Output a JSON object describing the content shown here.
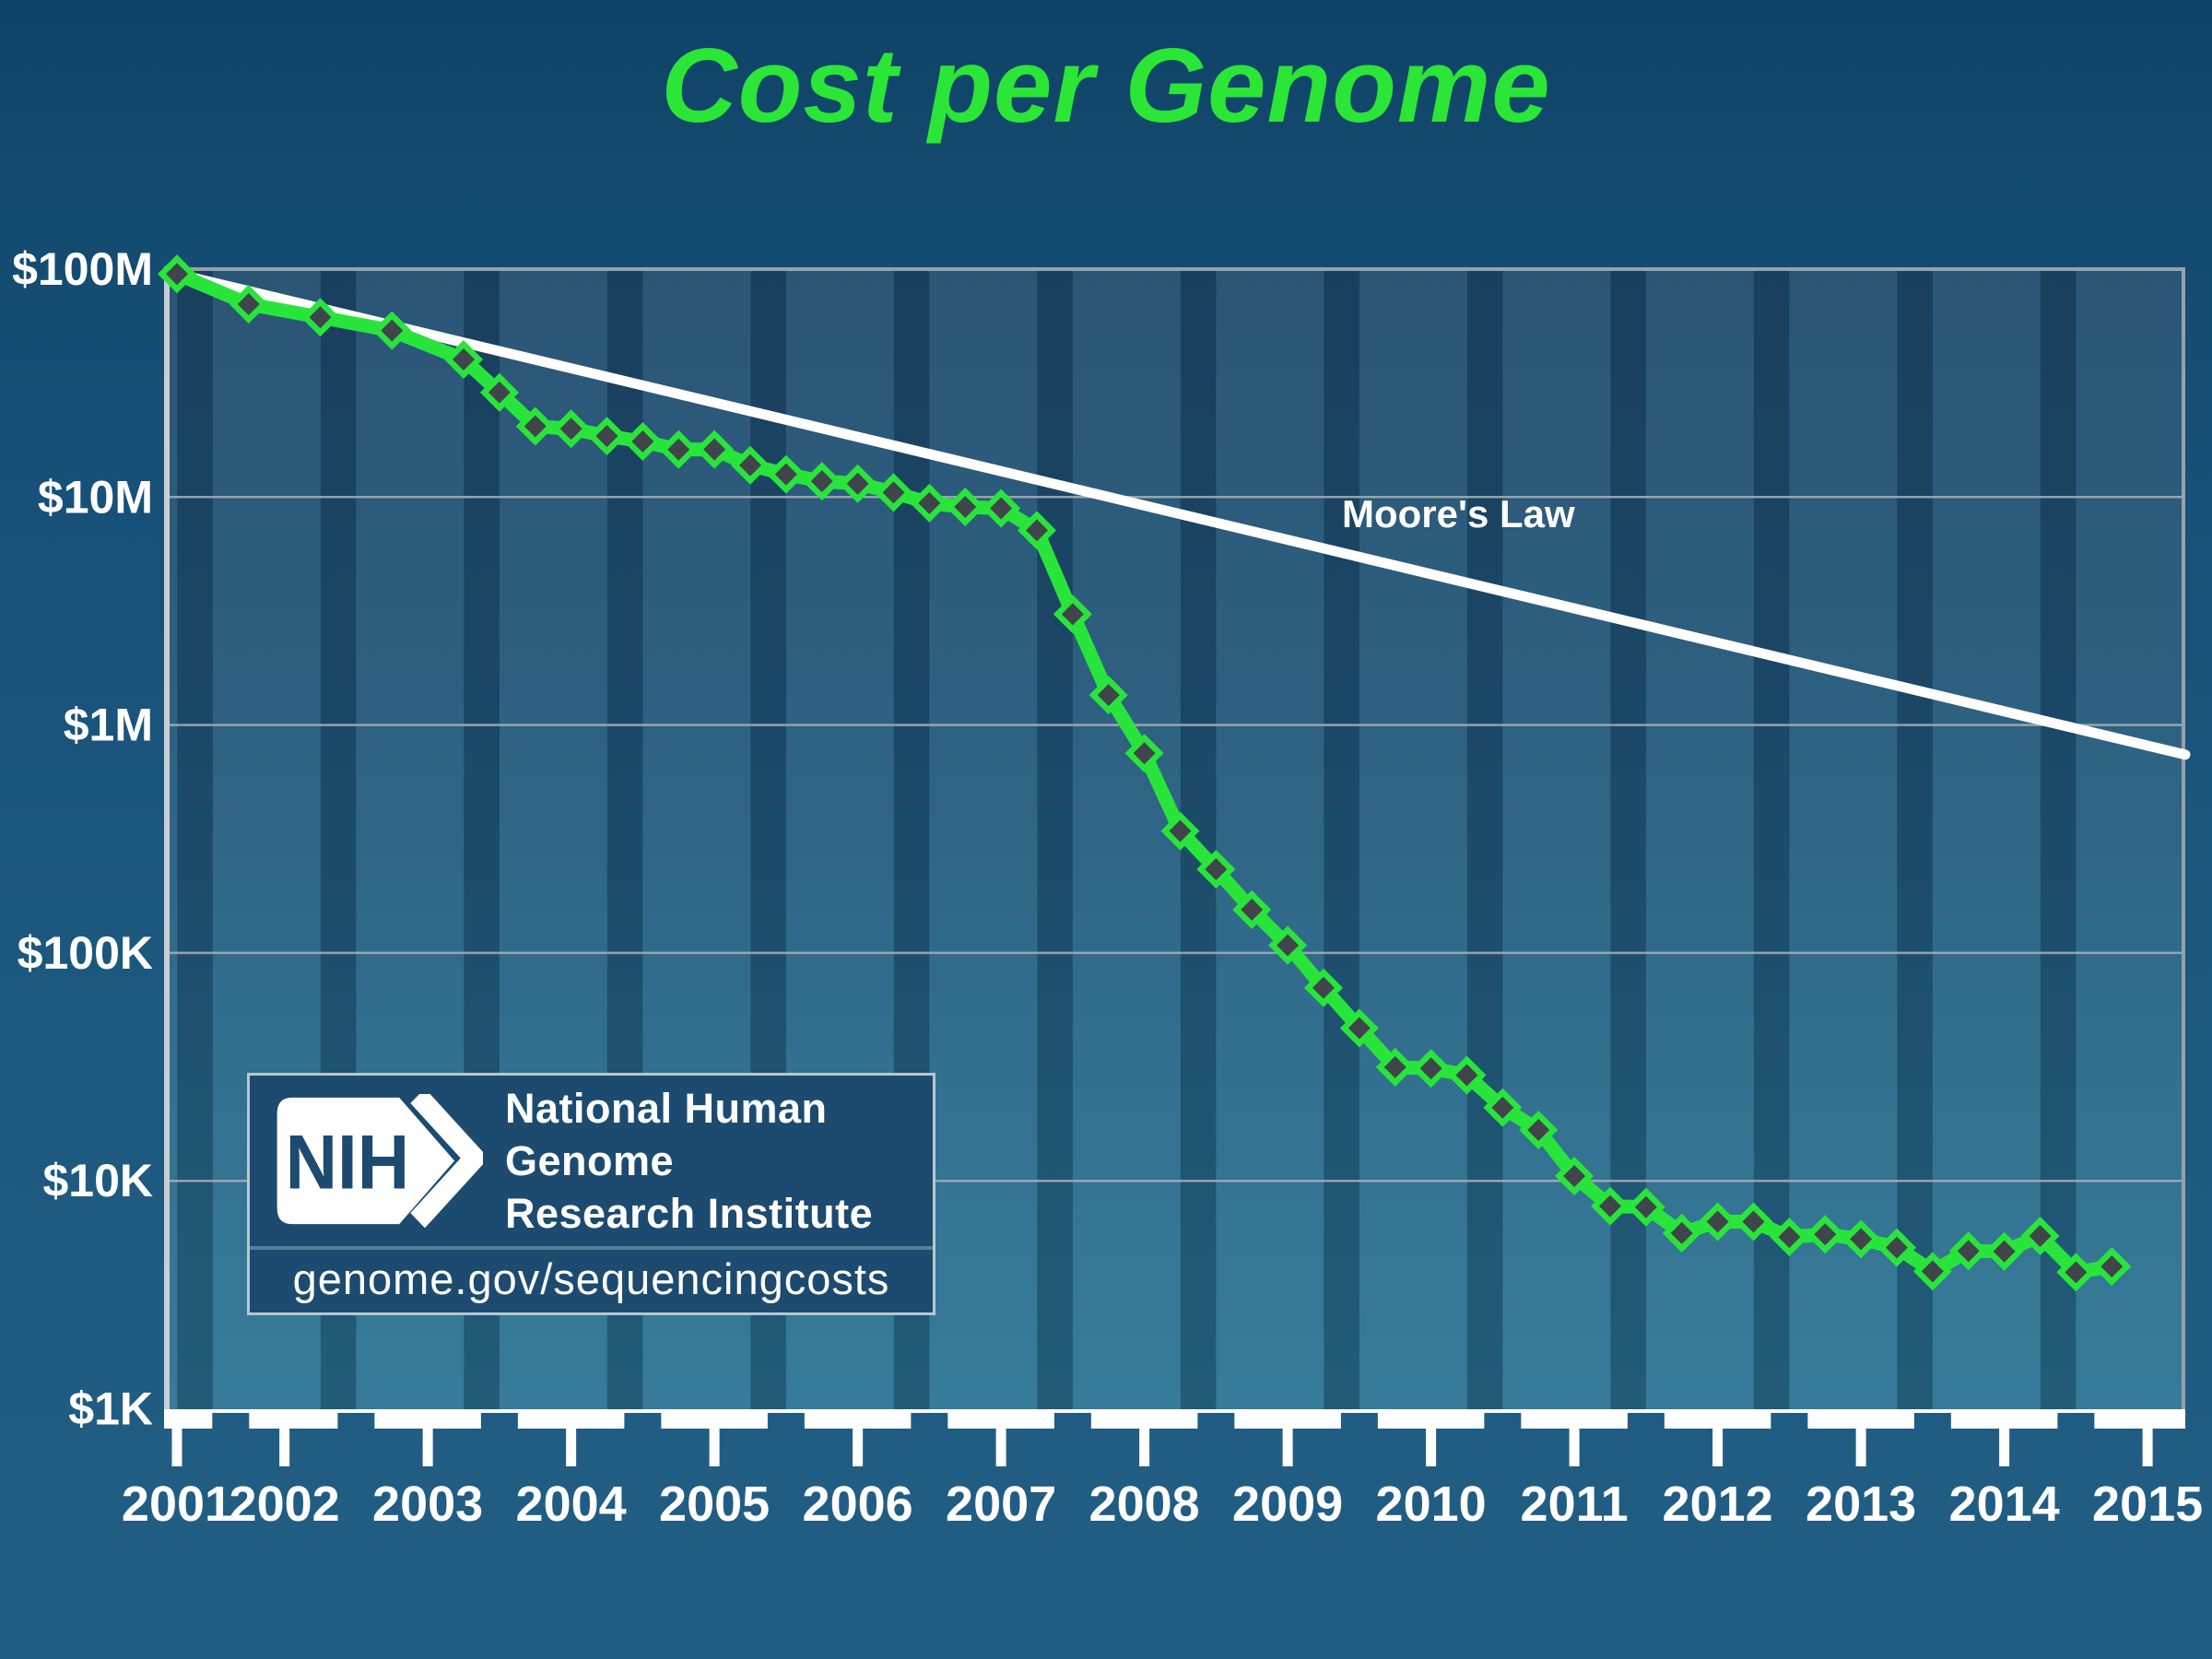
{
  "title": "Cost per Genome",
  "colors": {
    "title_green": "#2BE637",
    "curve_green": "#29E53B",
    "marker_fill": "#3F454A",
    "moore_line": "#FFFFFF",
    "grid_gray": "#A7B2B8",
    "frame_gray": "#97A1A8",
    "axis_white": "#C9CED2",
    "plot_top": "#224E70",
    "plot_bottom": "#2E7696",
    "stripe_dark": "rgba(6,30,52,0.30)",
    "stripe_light": "rgba(255,255,255,0.042)",
    "logo_navy": "#1D4B70",
    "logo_divider": "#4F84A0",
    "label_white": "#FFFFFF"
  },
  "logo": {
    "nih": "NIH",
    "org_line1": "National Human Genome",
    "org_line2": "Research Institute",
    "url": "genome.gov/sequencingcosts"
  },
  "chart_data": {
    "type": "line",
    "title": "Cost per Genome",
    "y_axis": {
      "scale": "log",
      "range": [
        1000,
        100000000
      ],
      "ticks": [
        {
          "label": "$100M",
          "value": 100000000
        },
        {
          "label": "$10M",
          "value": 10000000
        },
        {
          "label": "$1M",
          "value": 1000000
        },
        {
          "label": "$100K",
          "value": 100000
        },
        {
          "label": "$10K",
          "value": 10000
        },
        {
          "label": "$1K",
          "value": 1000
        }
      ]
    },
    "x_axis": {
      "range": [
        2001.68,
        2015.77
      ],
      "ticks": [
        {
          "label": "2001",
          "t": 2001.75
        },
        {
          "label": "2002",
          "t": 2002.5
        },
        {
          "label": "2003",
          "t": 2003.5
        },
        {
          "label": "2004",
          "t": 2004.5
        },
        {
          "label": "2005",
          "t": 2005.5
        },
        {
          "label": "2006",
          "t": 2006.5
        },
        {
          "label": "2007",
          "t": 2007.5
        },
        {
          "label": "2008",
          "t": 2008.5
        },
        {
          "label": "2009",
          "t": 2009.5
        },
        {
          "label": "2010",
          "t": 2010.5
        },
        {
          "label": "2011",
          "t": 2011.5
        },
        {
          "label": "2012",
          "t": 2012.5
        },
        {
          "label": "2013",
          "t": 2013.5
        },
        {
          "label": "2014",
          "t": 2014.5
        },
        {
          "label": "2015",
          "t": 2015.5
        }
      ]
    },
    "moores_law": {
      "label": "Moore's Law",
      "start": {
        "t": 2001.75,
        "cost": 95263072
      },
      "halving_period_years": 2
    },
    "series": [
      {
        "name": "Cost per Genome",
        "points": [
          {
            "date": "Sep-01",
            "t": 2001.75,
            "cost": 95263072
          },
          {
            "date": "Mar-02",
            "t": 2002.25,
            "cost": 70175437
          },
          {
            "date": "Sep-02",
            "t": 2002.75,
            "cost": 61448422
          },
          {
            "date": "Mar-03",
            "t": 2003.25,
            "cost": 53751684
          },
          {
            "date": "Oct-03",
            "t": 2003.75,
            "cost": 40157554
          },
          {
            "date": "Jan-04",
            "t": 2004.0,
            "cost": 28780376
          },
          {
            "date": "Apr-04",
            "t": 2004.25,
            "cost": 20442576
          },
          {
            "date": "Jul-04",
            "t": 2004.5,
            "cost": 19934346
          },
          {
            "date": "Oct-04",
            "t": 2004.75,
            "cost": 18519312
          },
          {
            "date": "Jan-05",
            "t": 2005.0,
            "cost": 17534970
          },
          {
            "date": "Apr-05",
            "t": 2005.25,
            "cost": 16159699
          },
          {
            "date": "Jul-05",
            "t": 2005.5,
            "cost": 16180224
          },
          {
            "date": "Oct-05",
            "t": 2005.75,
            "cost": 13801124
          },
          {
            "date": "Jan-06",
            "t": 2006.0,
            "cost": 12585659
          },
          {
            "date": "Apr-06",
            "t": 2006.25,
            "cost": 11732535
          },
          {
            "date": "Jul-06",
            "t": 2006.5,
            "cost": 11455315
          },
          {
            "date": "Oct-06",
            "t": 2006.75,
            "cost": 10474556
          },
          {
            "date": "Jan-07",
            "t": 2007.0,
            "cost": 9408739
          },
          {
            "date": "Apr-07",
            "t": 2007.25,
            "cost": 9047003
          },
          {
            "date": "Jul-07",
            "t": 2007.5,
            "cost": 8927342
          },
          {
            "date": "Oct-07",
            "t": 2007.75,
            "cost": 7147571
          },
          {
            "date": "Jan-08",
            "t": 2008.0,
            "cost": 3063820
          },
          {
            "date": "Apr-08",
            "t": 2008.25,
            "cost": 1352982
          },
          {
            "date": "Jul-08",
            "t": 2008.5,
            "cost": 752080
          },
          {
            "date": "Oct-08",
            "t": 2008.75,
            "cost": 342502
          },
          {
            "date": "Jan-09",
            "t": 2009.0,
            "cost": 232735
          },
          {
            "date": "Apr-09",
            "t": 2009.25,
            "cost": 154714
          },
          {
            "date": "Jul-09",
            "t": 2009.5,
            "cost": 108065
          },
          {
            "date": "Oct-09",
            "t": 2009.75,
            "cost": 70333
          },
          {
            "date": "Jan-10",
            "t": 2010.0,
            "cost": 46774
          },
          {
            "date": "Apr-10",
            "t": 2010.25,
            "cost": 31512
          },
          {
            "date": "Jul-10",
            "t": 2010.5,
            "cost": 31125
          },
          {
            "date": "Oct-10",
            "t": 2010.75,
            "cost": 29092
          },
          {
            "date": "Jan-11",
            "t": 2011.0,
            "cost": 20963
          },
          {
            "date": "Apr-11",
            "t": 2011.25,
            "cost": 16712
          },
          {
            "date": "Jul-11",
            "t": 2011.5,
            "cost": 10497
          },
          {
            "date": "Oct-11",
            "t": 2011.75,
            "cost": 7743
          },
          {
            "date": "Jan-12",
            "t": 2012.0,
            "cost": 7666
          },
          {
            "date": "Apr-12",
            "t": 2012.25,
            "cost": 5901
          },
          {
            "date": "Jul-12",
            "t": 2012.5,
            "cost": 6618
          },
          {
            "date": "Oct-12",
            "t": 2012.75,
            "cost": 6618
          },
          {
            "date": "Jan-13",
            "t": 2013.0,
            "cost": 5671
          },
          {
            "date": "Apr-13",
            "t": 2013.25,
            "cost": 5826
          },
          {
            "date": "Jul-13",
            "t": 2013.5,
            "cost": 5550
          },
          {
            "date": "Oct-13",
            "t": 2013.75,
            "cost": 5096
          },
          {
            "date": "Jan-14",
            "t": 2014.0,
            "cost": 4008
          },
          {
            "date": "Apr-14",
            "t": 2014.25,
            "cost": 4920
          },
          {
            "date": "Jul-14",
            "t": 2014.5,
            "cost": 4905
          },
          {
            "date": "Oct-14",
            "t": 2014.75,
            "cost": 5731
          },
          {
            "date": "Jan-15",
            "t": 2015.0,
            "cost": 3970
          },
          {
            "date": "Apr-15",
            "t": 2015.25,
            "cost": 4211
          }
        ]
      }
    ]
  }
}
